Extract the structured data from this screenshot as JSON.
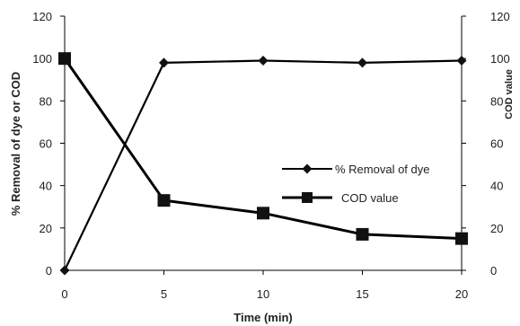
{
  "chart_data": {
    "type": "line",
    "xlabel": "Time (min)",
    "ylabel_left": "% Removal of dye or COD",
    "ylabel_right": "COD value",
    "x": [
      0,
      5,
      10,
      15,
      20
    ],
    "xticks": [
      "0",
      "5",
      "10",
      "15",
      "20"
    ],
    "xlim": [
      0,
      20
    ],
    "ylim_left": [
      0,
      120
    ],
    "ylim_right": [
      0,
      120
    ],
    "yticks_left": [
      "0",
      "20",
      "40",
      "60",
      "80",
      "100",
      "120"
    ],
    "yticks_right": [
      "0",
      "20",
      "40",
      "60",
      "80",
      "100",
      "120"
    ],
    "grid": false,
    "legend_position": "center-right",
    "series": [
      {
        "name": "% Removal of dye",
        "marker": "diamond",
        "axis": "left",
        "values": [
          0,
          98,
          99,
          98,
          99
        ]
      },
      {
        "name": "COD value",
        "marker": "square",
        "axis": "right",
        "values": [
          100,
          33,
          27,
          17,
          15
        ]
      }
    ]
  }
}
